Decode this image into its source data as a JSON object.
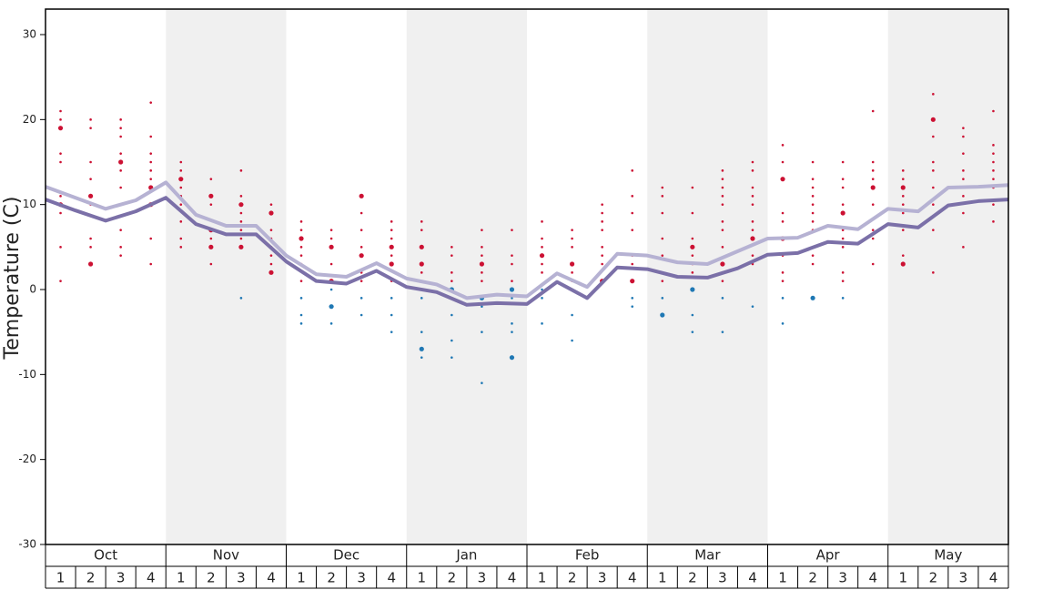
{
  "chart_data": {
    "type": "line",
    "y_label": "Temperature (C)",
    "ylim": [
      -30,
      33
    ],
    "yticks": [
      30,
      20,
      10,
      0,
      -10,
      -20,
      -30
    ],
    "months": [
      "Oct",
      "Nov",
      "Dec",
      "Jan",
      "Feb",
      "Mar",
      "Apr",
      "May"
    ],
    "week_labels": [
      1,
      2,
      3,
      4
    ],
    "shade_color": "#f0f0f0",
    "warm_color": "#cc1133",
    "cold_color": "#1f78b4",
    "series": [
      {
        "color": "#b6b2d3",
        "values": [
          12.1,
          10.8,
          9.5,
          10.5,
          12.6,
          8.8,
          7.5,
          7.5,
          4.0,
          1.8,
          1.5,
          3.1,
          1.3,
          0.6,
          -1.0,
          -0.6,
          -0.8,
          1.9,
          0.3,
          4.2,
          4.0,
          3.2,
          3.0,
          4.5,
          6.0,
          6.1,
          7.5,
          7.1,
          9.5,
          9.2,
          12.0,
          12.1,
          12.3
        ]
      },
      {
        "color": "#7b70a8",
        "values": [
          10.6,
          9.3,
          8.1,
          9.2,
          10.8,
          7.7,
          6.5,
          6.5,
          3.3,
          1.0,
          0.7,
          2.2,
          0.3,
          -0.3,
          -1.8,
          -1.6,
          -1.7,
          0.9,
          -1.0,
          2.6,
          2.4,
          1.5,
          1.4,
          2.5,
          4.1,
          4.3,
          5.6,
          5.4,
          7.7,
          7.3,
          9.9,
          10.4,
          10.6
        ]
      }
    ],
    "dots": [
      {
        "values": [
          21,
          20,
          19,
          16,
          15,
          11,
          10,
          9,
          5,
          1
        ],
        "sizes": [
          1,
          1,
          2,
          1,
          1,
          1,
          2,
          1,
          1,
          1
        ]
      },
      {
        "values": [
          20,
          19,
          15,
          13,
          11,
          10,
          6,
          5,
          3
        ],
        "sizes": [
          1,
          1,
          1,
          1,
          2,
          1,
          1,
          1,
          2
        ]
      },
      {
        "values": [
          20,
          19,
          18,
          16,
          15,
          14,
          12,
          10,
          7,
          5,
          4
        ],
        "sizes": [
          1,
          1,
          1,
          1,
          2,
          1,
          1,
          1,
          1,
          1,
          1
        ]
      },
      {
        "values": [
          22,
          18,
          16,
          15,
          14,
          13,
          12,
          10,
          6,
          3
        ],
        "sizes": [
          1,
          1,
          1,
          1,
          1,
          1,
          2,
          2,
          1,
          1
        ]
      },
      {
        "values": [
          15,
          14,
          13,
          12,
          11,
          10,
          8,
          6,
          5
        ],
        "sizes": [
          1,
          1,
          2,
          1,
          1,
          1,
          1,
          1,
          1
        ]
      },
      {
        "values": [
          13,
          11,
          10,
          7,
          6,
          5,
          3
        ],
        "sizes": [
          1,
          2,
          1,
          2,
          1,
          2,
          1
        ]
      },
      {
        "values": [
          14,
          11,
          10,
          9,
          8,
          7,
          6,
          5,
          -1
        ],
        "sizes": [
          1,
          1,
          2,
          1,
          1,
          1,
          1,
          2,
          1
        ]
      },
      {
        "values": [
          10,
          9,
          7,
          6,
          5,
          4,
          3,
          2
        ],
        "sizes": [
          1,
          2,
          1,
          1,
          1,
          1,
          1,
          2
        ]
      },
      {
        "values": [
          8,
          7,
          6,
          5,
          4,
          3,
          1,
          -1,
          -3,
          -4
        ],
        "sizes": [
          1,
          1,
          2,
          1,
          1,
          1,
          1,
          1,
          1,
          1
        ]
      },
      {
        "values": [
          7,
          6,
          5,
          3,
          1,
          0,
          -2,
          -4
        ],
        "sizes": [
          1,
          1,
          2,
          1,
          2,
          1,
          2,
          1
        ]
      },
      {
        "values": [
          11,
          9,
          7,
          5,
          4,
          2,
          1,
          -1,
          -3
        ],
        "sizes": [
          2,
          1,
          1,
          1,
          2,
          1,
          1,
          1,
          1
        ]
      },
      {
        "values": [
          8,
          7,
          6,
          5,
          4,
          3,
          1,
          -1,
          -3,
          -5
        ],
        "sizes": [
          1,
          1,
          1,
          2,
          1,
          2,
          1,
          1,
          1,
          1
        ]
      },
      {
        "values": [
          8,
          7,
          5,
          3,
          2,
          -1,
          -5,
          -7,
          -8
        ],
        "sizes": [
          1,
          1,
          2,
          2,
          1,
          1,
          1,
          2,
          1
        ]
      },
      {
        "values": [
          5,
          4,
          2,
          1,
          0,
          -1,
          -3,
          -6,
          -8
        ],
        "sizes": [
          1,
          1,
          1,
          1,
          2,
          1,
          1,
          1,
          1
        ]
      },
      {
        "values": [
          7,
          5,
          4,
          3,
          2,
          1,
          -1,
          -2,
          -5,
          -11
        ],
        "sizes": [
          1,
          1,
          1,
          2,
          1,
          1,
          2,
          1,
          1,
          1
        ]
      },
      {
        "values": [
          7,
          4,
          3,
          1,
          0,
          -1,
          -4,
          -5,
          -8
        ],
        "sizes": [
          1,
          1,
          1,
          1,
          2,
          1,
          1,
          1,
          2
        ]
      },
      {
        "values": [
          8,
          6,
          5,
          4,
          3,
          2,
          0,
          -1,
          -4
        ],
        "sizes": [
          1,
          1,
          1,
          2,
          1,
          1,
          1,
          1,
          1
        ]
      },
      {
        "values": [
          7,
          6,
          5,
          3,
          2,
          1,
          -3,
          -6
        ],
        "sizes": [
          1,
          1,
          1,
          2,
          1,
          1,
          1,
          1
        ]
      },
      {
        "values": [
          10,
          9,
          8,
          7,
          5,
          4,
          3,
          1
        ],
        "sizes": [
          1,
          1,
          1,
          1,
          1,
          1,
          1,
          2
        ]
      },
      {
        "values": [
          14,
          11,
          9,
          7,
          4,
          3,
          1,
          -1,
          -2
        ],
        "sizes": [
          1,
          1,
          1,
          1,
          1,
          1,
          2,
          1,
          1
        ]
      },
      {
        "values": [
          12,
          11,
          9,
          6,
          4,
          2,
          1,
          -1,
          -3
        ],
        "sizes": [
          1,
          1,
          1,
          1,
          1,
          1,
          1,
          1,
          2
        ]
      },
      {
        "values": [
          12,
          9,
          6,
          5,
          4,
          3,
          2,
          0,
          -3,
          -5
        ],
        "sizes": [
          1,
          1,
          1,
          2,
          1,
          1,
          1,
          2,
          1,
          1
        ]
      },
      {
        "values": [
          14,
          13,
          12,
          11,
          10,
          8,
          7,
          5,
          3,
          1,
          -1,
          -5
        ],
        "sizes": [
          1,
          1,
          1,
          1,
          1,
          1,
          1,
          1,
          2,
          1,
          1,
          1
        ]
      },
      {
        "values": [
          15,
          14,
          12,
          11,
          10,
          8,
          7,
          6,
          4,
          3,
          -2
        ],
        "sizes": [
          1,
          1,
          1,
          1,
          1,
          1,
          1,
          2,
          1,
          1,
          1
        ]
      },
      {
        "values": [
          17,
          15,
          13,
          9,
          8,
          6,
          4,
          2,
          1,
          -1,
          -4
        ],
        "sizes": [
          1,
          1,
          2,
          1,
          1,
          2,
          1,
          1,
          1,
          1,
          1
        ]
      },
      {
        "values": [
          15,
          13,
          12,
          11,
          10,
          9,
          8,
          7,
          4,
          3,
          -1
        ],
        "sizes": [
          1,
          1,
          1,
          1,
          1,
          1,
          1,
          1,
          1,
          1,
          2
        ]
      },
      {
        "values": [
          15,
          13,
          12,
          10,
          9,
          7,
          6,
          5,
          2,
          1,
          -1
        ],
        "sizes": [
          1,
          1,
          1,
          1,
          2,
          1,
          1,
          1,
          1,
          1,
          1
        ]
      },
      {
        "values": [
          21,
          15,
          14,
          13,
          12,
          10,
          7,
          6,
          3
        ],
        "sizes": [
          1,
          1,
          1,
          1,
          2,
          1,
          1,
          1,
          1
        ]
      },
      {
        "values": [
          14,
          13,
          12,
          11,
          10,
          9,
          7,
          4,
          3
        ],
        "sizes": [
          1,
          1,
          2,
          1,
          1,
          1,
          1,
          1,
          2
        ]
      },
      {
        "values": [
          23,
          20,
          18,
          15,
          14,
          12,
          10,
          7,
          2
        ],
        "sizes": [
          1,
          2,
          1,
          1,
          1,
          1,
          1,
          1,
          1
        ]
      },
      {
        "values": [
          19,
          18,
          16,
          14,
          13,
          12,
          11,
          9,
          5
        ],
        "sizes": [
          1,
          1,
          1,
          1,
          1,
          1,
          1,
          1,
          1
        ]
      },
      {
        "values": [
          21,
          17,
          16,
          15,
          14,
          13,
          12,
          10,
          8
        ],
        "sizes": [
          1,
          1,
          1,
          1,
          1,
          1,
          1,
          1,
          1
        ]
      }
    ]
  }
}
